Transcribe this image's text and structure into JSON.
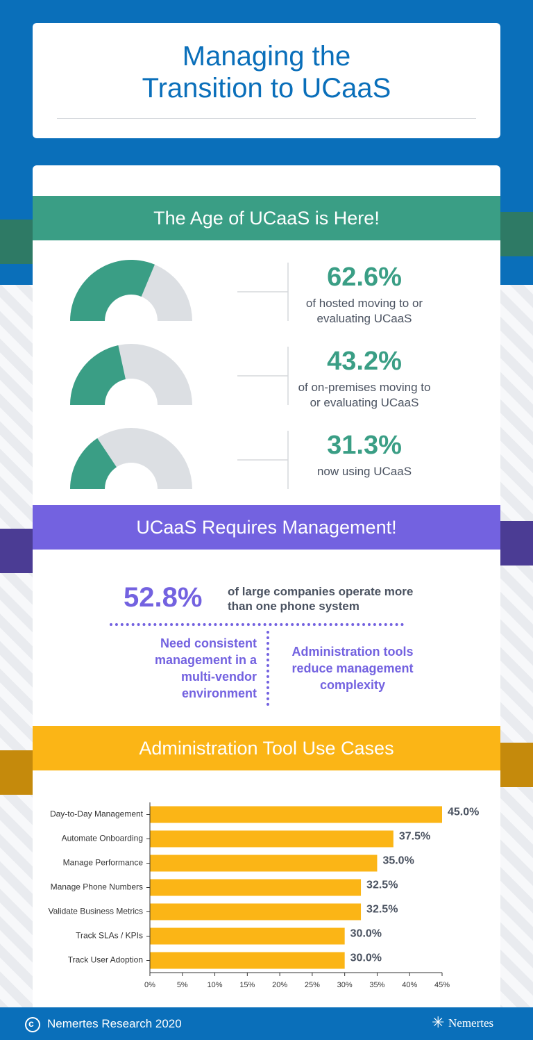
{
  "header": {
    "title": "Managing the Transition to UCaaS"
  },
  "sections": {
    "age": "The Age of UCaaS is Here!",
    "management": "UCaaS Requires Management!",
    "tools": "Administration Tool Use Cases"
  },
  "management": {
    "stat": "52.8%",
    "stat_text": "of large companies operate more than one phone system",
    "left": "Need consistent management in a multi-vendor environment",
    "right": "Administration tools reduce management complexity"
  },
  "chart_data": [
    {
      "type": "gauge",
      "value": 62.6,
      "value_label": "62.6%",
      "caption": "of hosted moving to or evaluating UCaaS",
      "ylim": [
        0,
        100
      ],
      "color": "#3a9e85",
      "track_color": "#dcdfe3"
    },
    {
      "type": "gauge",
      "value": 43.2,
      "value_label": "43.2%",
      "caption": "of on-premises moving to or evaluating UCaaS",
      "ylim": [
        0,
        100
      ],
      "color": "#3a9e85",
      "track_color": "#dcdfe3"
    },
    {
      "type": "gauge",
      "value": 31.3,
      "value_label": "31.3%",
      "caption": "now using UCaaS",
      "ylim": [
        0,
        100
      ],
      "color": "#3a9e85",
      "track_color": "#dcdfe3"
    },
    {
      "type": "hbar",
      "categories": [
        "Day-to-Day Management",
        "Automate Onboarding",
        "Manage Performance",
        "Manage Phone Numbers",
        "Validate Business Metrics",
        "Track SLAs / KPIs",
        "Track User Adoption"
      ],
      "values": [
        45.0,
        37.5,
        35.0,
        32.5,
        32.5,
        30.0,
        30.0
      ],
      "value_labels": [
        "45.0%",
        "37.5%",
        "35.0%",
        "32.5%",
        "32.5%",
        "30.0%",
        "30.0%"
      ],
      "color": "#fbb516",
      "xlim": [
        0,
        45
      ],
      "xticks": [
        {
          "value": 0,
          "label": "0%"
        },
        {
          "value": 5,
          "label": "5%"
        },
        {
          "value": 10,
          "label": "10%"
        },
        {
          "value": 15,
          "label": "15%"
        },
        {
          "value": 20,
          "label": "20%"
        },
        {
          "value": 25,
          "label": "25%"
        },
        {
          "value": 30,
          "label": "30%"
        },
        {
          "value": 35,
          "label": "35%"
        },
        {
          "value": 40,
          "label": "40%"
        },
        {
          "value": 45,
          "label": "45%"
        }
      ]
    }
  ],
  "footer": {
    "copyright": "Nemertes Research 2020",
    "logo": "Nemertes"
  }
}
